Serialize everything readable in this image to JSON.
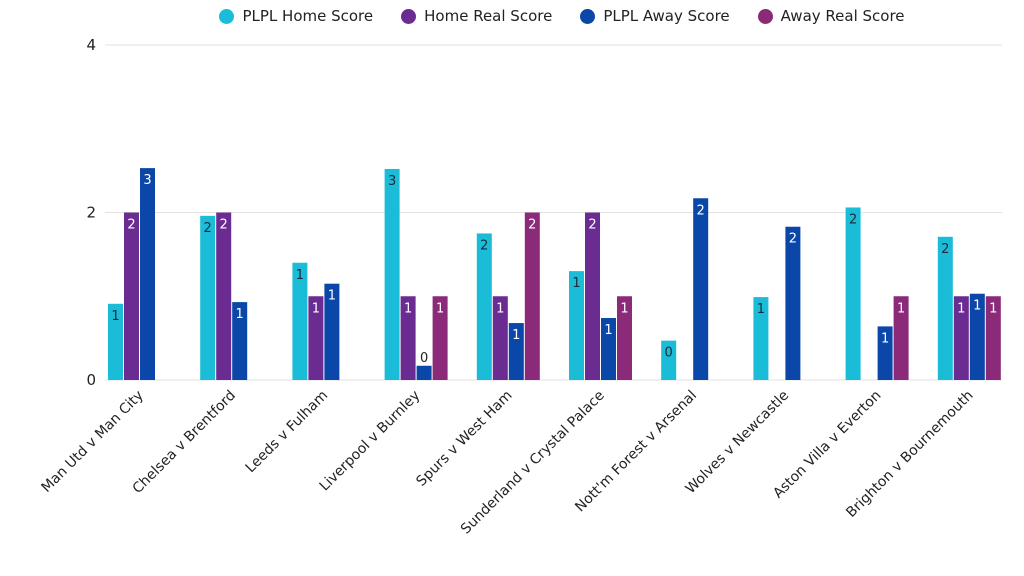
{
  "chart_data": {
    "type": "bar",
    "title": "",
    "xlabel": "",
    "ylabel": "",
    "ylim": [
      0,
      4
    ],
    "yticks": [
      0,
      2,
      4
    ],
    "grid": true,
    "legend_position": "top-center",
    "categories": [
      "Man Utd v Man City",
      "Chelsea v Brentford",
      "Leeds v Fulham",
      "Liverpool v Burnley",
      "Spurs v West Ham",
      "Sunderland v Crystal Palace",
      "Nott'm Forest v Arsenal",
      "Wolves v Newcastle",
      "Aston Villa v Everton",
      "Brighton v Bournemouth"
    ],
    "series": [
      {
        "name": "PLPL Home Score",
        "color": "#1bbcd8",
        "label_color": "#1a2a3a",
        "values": [
          0.91,
          1.96,
          1.4,
          2.52,
          1.75,
          1.3,
          0.47,
          0.99,
          2.06,
          1.71
        ],
        "labels": [
          "1",
          "2",
          "1",
          "3",
          "2",
          "1",
          "0",
          "1",
          "2",
          "2"
        ]
      },
      {
        "name": "Home Real Score",
        "color": "#6a2c91",
        "label_color": "#ffffff",
        "values": [
          2,
          2,
          1,
          1,
          1,
          2,
          null,
          null,
          null,
          1
        ],
        "labels": [
          "2",
          "2",
          "1",
          "1",
          "1",
          "2",
          null,
          null,
          null,
          "1"
        ]
      },
      {
        "name": "PLPL Away Score",
        "color": "#0a47a9",
        "label_color": "#ffffff",
        "values": [
          2.53,
          0.93,
          1.15,
          0.17,
          0.68,
          0.74,
          2.17,
          1.83,
          0.64,
          1.03
        ],
        "labels": [
          "3",
          "1",
          "1",
          "0",
          "1",
          "1",
          "2",
          "2",
          "1",
          "1"
        ]
      },
      {
        "name": "Away Real Score",
        "color": "#8a2a78",
        "label_color": "#ffffff",
        "values": [
          null,
          null,
          null,
          1,
          2,
          1,
          null,
          null,
          1,
          1
        ],
        "labels": [
          null,
          null,
          null,
          "1",
          "2",
          "1",
          null,
          null,
          "1",
          "1"
        ]
      }
    ]
  }
}
